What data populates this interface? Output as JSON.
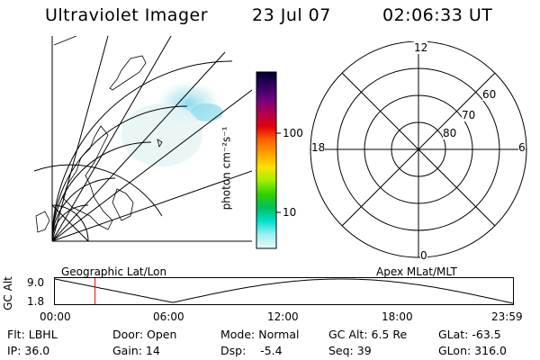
{
  "header": {
    "title": "Ultraviolet Imager",
    "date": "23 Jul 07",
    "time": "02:06:33 UT"
  },
  "colorbar": {
    "label": "photon cm⁻²s⁻¹",
    "ticks": [
      "100",
      "10"
    ]
  },
  "polar_plot": {
    "mlt_labels": {
      "top": "12",
      "left": "18",
      "right": "6",
      "bottom": "0"
    },
    "lat_labels": [
      "60",
      "70",
      "80"
    ]
  },
  "panels": {
    "geo_label": "Geographic Lat/Lon",
    "apex_label": "Apex MLat/MLT"
  },
  "alt_plot": {
    "ylabel": "GC Alt",
    "y_ticks": [
      "9.0",
      "1.8"
    ],
    "x_ticks": [
      "00:00",
      "06:00",
      "12:00",
      "18:00",
      "23:59"
    ],
    "marker_time": "02:06"
  },
  "info": {
    "row1": {
      "flt": "Flt: LBHL",
      "door": "Door: Open",
      "mode": "Mode: Normal",
      "gc_alt": "GC Alt: 6.5 Re",
      "glat": "GLat: -63.5"
    },
    "row2": {
      "ip": "IP: 36.0",
      "gain": "Gain: 14",
      "dsp": "Dsp:    -5.4",
      "seq": "Seq: 39",
      "glon": "GLon: 316.0"
    }
  },
  "colors": {
    "marker": "#ff0000",
    "colorbar_stops": [
      "#000030",
      "#300060",
      "#700080",
      "#b00050",
      "#e00010",
      "#ff6000",
      "#ffa000",
      "#ffe000",
      "#a0f000",
      "#30d000",
      "#00c060",
      "#00e0d0",
      "#a0f0f0",
      "#e8f8f8"
    ]
  }
}
